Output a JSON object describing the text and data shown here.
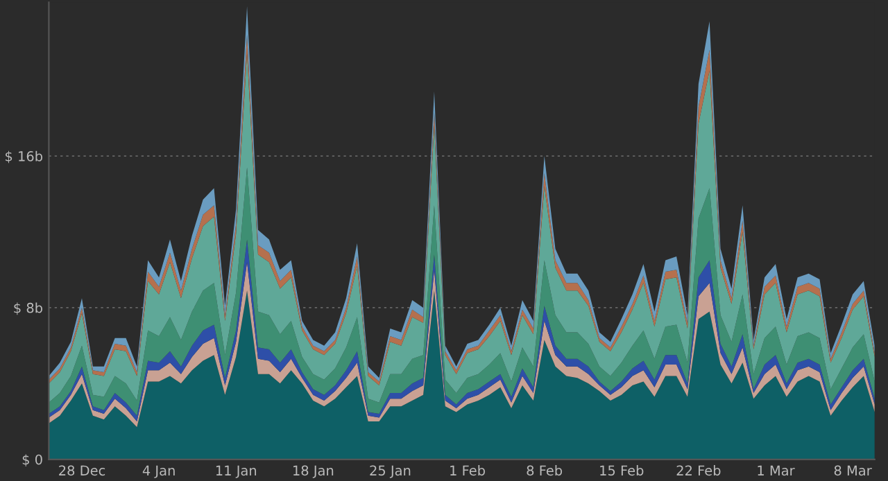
{
  "chart_data": {
    "type": "area",
    "stacked": true,
    "categories": [
      null,
      null,
      null,
      "28 Dec",
      null,
      null,
      null,
      null,
      null,
      null,
      "4 Jan",
      null,
      null,
      null,
      null,
      null,
      null,
      "11 Jan",
      null,
      null,
      null,
      null,
      null,
      null,
      "18 Jan",
      null,
      null,
      null,
      null,
      null,
      null,
      "25 Jan",
      null,
      null,
      null,
      null,
      null,
      null,
      "1 Feb",
      null,
      null,
      null,
      null,
      null,
      null,
      "8 Feb",
      null,
      null,
      null,
      null,
      null,
      null,
      "15 Feb",
      null,
      null,
      null,
      null,
      null,
      null,
      "22 Feb",
      null,
      null,
      null,
      null,
      null,
      null,
      "1 Mar",
      null,
      null,
      null,
      null,
      null,
      null,
      "8 Mar",
      null,
      null
    ],
    "series": [
      {
        "color": "#0e6066",
        "values": [
          1.9,
          2.3,
          3.1,
          4.0,
          2.3,
          2.1,
          2.8,
          2.3,
          1.7,
          4.1,
          4.1,
          4.4,
          4.0,
          4.7,
          5.2,
          5.5,
          3.4,
          5.4,
          8.9,
          4.5,
          4.5,
          4.0,
          4.7,
          4.0,
          3.1,
          2.8,
          3.2,
          3.8,
          4.4,
          2.0,
          2.0,
          2.8,
          2.8,
          3.1,
          3.4,
          8.9,
          2.8,
          2.5,
          2.9,
          3.1,
          3.4,
          3.8,
          2.7,
          3.9,
          3.1,
          6.3,
          4.9,
          4.4,
          4.3,
          4.0,
          3.6,
          3.1,
          3.4,
          3.9,
          4.1,
          3.3,
          4.4,
          4.4,
          3.3,
          7.4,
          7.8,
          5.0,
          4.0,
          5.1,
          3.2,
          3.9,
          4.4,
          3.3,
          4.1,
          4.4,
          4.1,
          2.3,
          3.1,
          3.8,
          4.4,
          2.5
        ]
      },
      {
        "color": "#c9a193",
        "values": [
          0.3,
          0.3,
          0.3,
          0.5,
          0.3,
          0.3,
          0.4,
          0.4,
          0.3,
          0.6,
          0.6,
          0.7,
          0.5,
          0.7,
          0.9,
          0.9,
          0.5,
          0.8,
          1.5,
          0.8,
          0.7,
          0.6,
          0.6,
          0.3,
          0.3,
          0.3,
          0.4,
          0.5,
          0.7,
          0.3,
          0.2,
          0.4,
          0.4,
          0.5,
          0.5,
          1.1,
          0.3,
          0.2,
          0.3,
          0.3,
          0.4,
          0.4,
          0.3,
          0.5,
          0.4,
          1.0,
          0.6,
          0.5,
          0.6,
          0.5,
          0.3,
          0.3,
          0.4,
          0.5,
          0.6,
          0.5,
          0.6,
          0.6,
          0.4,
          1.2,
          1.5,
          0.6,
          0.5,
          0.8,
          0.3,
          0.6,
          0.6,
          0.4,
          0.6,
          0.5,
          0.5,
          0.3,
          0.4,
          0.5,
          0.5,
          0.4
        ]
      },
      {
        "color": "#2e4fa8",
        "values": [
          0.2,
          0.2,
          0.2,
          0.4,
          0.2,
          0.2,
          0.3,
          0.3,
          0.3,
          0.5,
          0.4,
          0.6,
          0.4,
          0.6,
          0.7,
          0.7,
          0.4,
          0.6,
          1.2,
          0.6,
          0.6,
          0.5,
          0.5,
          0.3,
          0.3,
          0.3,
          0.3,
          0.4,
          0.6,
          0.2,
          0.2,
          0.3,
          0.3,
          0.4,
          0.4,
          0.8,
          0.3,
          0.2,
          0.3,
          0.3,
          0.3,
          0.3,
          0.3,
          0.4,
          0.3,
          0.8,
          0.5,
          0.4,
          0.4,
          0.4,
          0.2,
          0.2,
          0.3,
          0.4,
          0.5,
          0.4,
          0.5,
          0.5,
          0.3,
          1.0,
          1.2,
          0.5,
          0.4,
          0.7,
          0.2,
          0.5,
          0.5,
          0.3,
          0.4,
          0.4,
          0.4,
          0.3,
          0.3,
          0.4,
          0.4,
          0.3
        ]
      },
      {
        "color": "#3e8f73",
        "values": [
          0.6,
          0.7,
          0.8,
          1.1,
          0.6,
          0.7,
          0.9,
          1.0,
          0.8,
          1.6,
          1.4,
          1.8,
          1.4,
          1.8,
          2.1,
          2.2,
          1.2,
          2.0,
          3.8,
          1.9,
          1.8,
          1.5,
          1.5,
          0.8,
          0.8,
          0.8,
          0.9,
          1.2,
          1.8,
          0.7,
          0.6,
          1.0,
          1.0,
          1.3,
          1.2,
          2.6,
          0.8,
          0.6,
          0.8,
          0.8,
          0.9,
          1.1,
          0.8,
          1.1,
          1.1,
          2.4,
          1.6,
          1.4,
          1.4,
          1.2,
          0.8,
          0.8,
          1.0,
          1.2,
          1.6,
          1.1,
          1.5,
          1.6,
          1.1,
          3.1,
          3.8,
          1.5,
          1.3,
          2.1,
          0.8,
          1.4,
          1.5,
          1.0,
          1.4,
          1.4,
          1.4,
          0.8,
          1.0,
          1.2,
          1.3,
          0.9
        ]
      },
      {
        "color": "#5fa898",
        "values": [
          1.0,
          1.1,
          1.3,
          1.7,
          1.1,
          1.1,
          1.4,
          1.7,
          1.3,
          2.6,
          2.2,
          2.9,
          2.2,
          2.8,
          3.4,
          3.5,
          1.8,
          3.1,
          6.0,
          3.0,
          2.8,
          2.4,
          2.3,
          1.4,
          1.3,
          1.3,
          1.3,
          1.8,
          2.7,
          1.2,
          0.9,
          1.7,
          1.5,
          2.2,
          1.7,
          4.2,
          1.3,
          1.0,
          1.3,
          1.3,
          1.5,
          1.7,
          1.4,
          1.7,
          1.7,
          3.9,
          2.5,
          2.2,
          2.2,
          2.0,
          1.3,
          1.3,
          1.6,
          1.9,
          2.5,
          1.7,
          2.5,
          2.5,
          1.8,
          5.0,
          6.2,
          2.5,
          2.0,
          3.3,
          1.3,
          2.3,
          2.3,
          1.7,
          2.2,
          2.2,
          2.2,
          1.4,
          1.6,
          2.0,
          2.0,
          1.3
        ]
      },
      {
        "color": "#b5704e",
        "values": [
          0.2,
          0.2,
          0.2,
          0.3,
          0.2,
          0.2,
          0.3,
          0.3,
          0.2,
          0.5,
          0.4,
          0.5,
          0.4,
          0.5,
          0.6,
          0.6,
          0.3,
          0.5,
          1.0,
          0.5,
          0.5,
          0.4,
          0.4,
          0.2,
          0.2,
          0.2,
          0.2,
          0.3,
          0.5,
          0.2,
          0.2,
          0.3,
          0.3,
          0.4,
          0.3,
          0.7,
          0.2,
          0.2,
          0.2,
          0.2,
          0.3,
          0.3,
          0.2,
          0.3,
          0.3,
          0.7,
          0.4,
          0.4,
          0.4,
          0.3,
          0.2,
          0.2,
          0.3,
          0.3,
          0.4,
          0.3,
          0.4,
          0.4,
          0.3,
          0.9,
          1.1,
          0.4,
          0.3,
          0.6,
          0.2,
          0.4,
          0.4,
          0.3,
          0.4,
          0.4,
          0.4,
          0.2,
          0.3,
          0.3,
          0.3,
          0.2
        ]
      },
      {
        "color": "#6a9cc0",
        "values": [
          0.2,
          0.3,
          0.3,
          0.5,
          0.2,
          0.3,
          0.3,
          0.4,
          0.3,
          0.6,
          0.5,
          0.7,
          0.5,
          0.7,
          0.8,
          0.9,
          0.5,
          0.8,
          1.5,
          0.8,
          0.7,
          0.6,
          0.5,
          0.3,
          0.3,
          0.3,
          0.4,
          0.5,
          0.7,
          0.3,
          0.2,
          0.4,
          0.4,
          0.5,
          0.5,
          1.1,
          0.3,
          0.2,
          0.3,
          0.3,
          0.3,
          0.4,
          0.3,
          0.5,
          0.4,
          0.9,
          0.6,
          0.5,
          0.5,
          0.5,
          0.3,
          0.3,
          0.4,
          0.5,
          0.6,
          0.5,
          0.6,
          0.7,
          0.4,
          1.2,
          1.5,
          0.6,
          0.5,
          0.8,
          0.3,
          0.5,
          0.6,
          0.4,
          0.5,
          0.5,
          0.5,
          0.3,
          0.4,
          0.5,
          0.5,
          0.4
        ]
      }
    ],
    "ylim": [
      0,
      24.1
    ],
    "yticks": [
      {
        "value": 0,
        "label": "$ 0"
      },
      {
        "value": 8,
        "label": "$ 8b"
      },
      {
        "value": 16,
        "label": "$ 16b"
      }
    ],
    "grid": "y"
  }
}
